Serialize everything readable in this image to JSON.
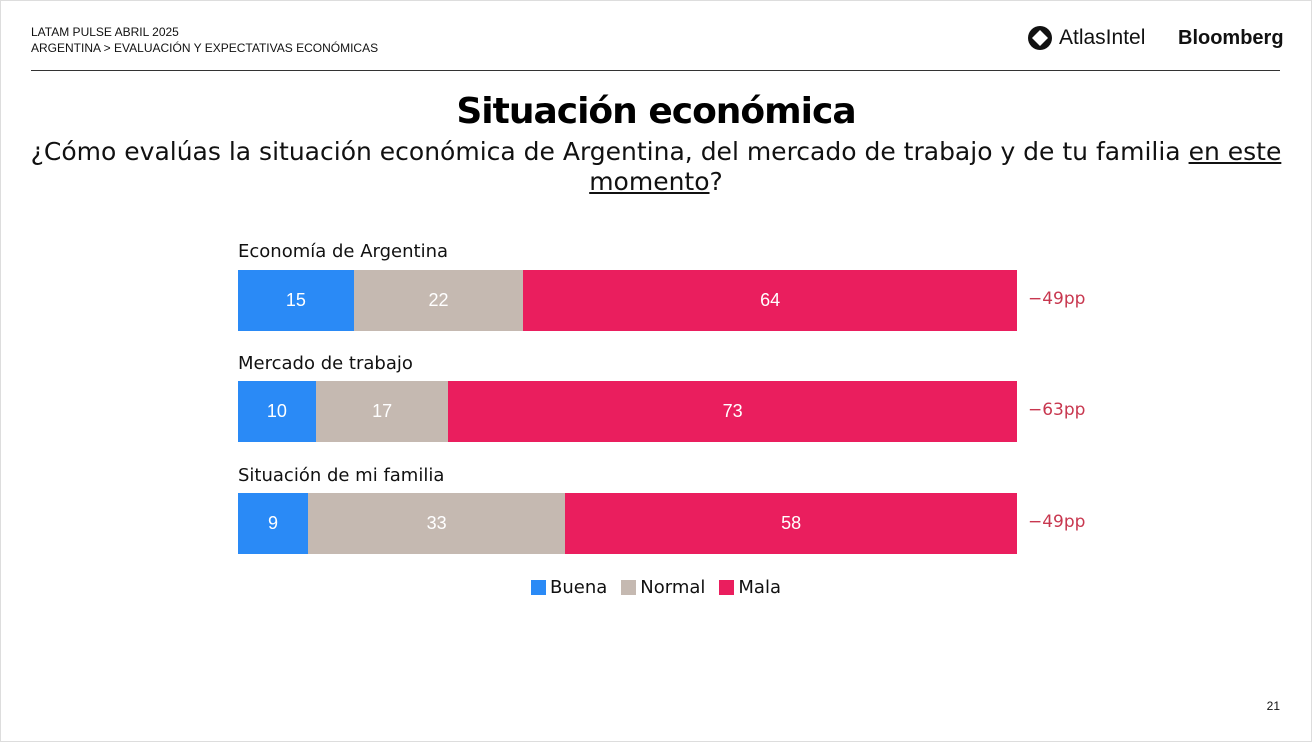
{
  "header": {
    "line1": "LATAM PULSE ABRIL 2025",
    "line2": "ARGENTINA > EVALUACIÓN Y EXPECTATIVAS ECONÓMICAS",
    "logo_atlas": "AtlasIntel",
    "logo_bloomberg": "Bloomberg"
  },
  "page_number": "21",
  "chart_data": {
    "type": "bar",
    "orientation": "horizontal",
    "stacked": true,
    "title": "Situación económica",
    "subtitle_pre": "¿Cómo evalúas la situación económica de Argentina, del mercado de trabajo y de tu familia ",
    "subtitle_underlined": "en este momento",
    "subtitle_post": "?",
    "categories": [
      "Economía de Argentina",
      "Mercado de trabajo",
      "Situación de mi familia"
    ],
    "series": [
      {
        "name": "Buena",
        "color": "#2a8af6",
        "values": [
          15,
          10,
          9
        ]
      },
      {
        "name": "Normal",
        "color": "#c5b9b1",
        "values": [
          22,
          17,
          33
        ]
      },
      {
        "name": "Mala",
        "color": "#ea1e5e",
        "values": [
          64,
          73,
          58
        ]
      }
    ],
    "net_labels": [
      "−49pp",
      "−63pp",
      "−49pp"
    ],
    "net_color": "#c8374f",
    "legend_position": "bottom",
    "grid": false
  }
}
